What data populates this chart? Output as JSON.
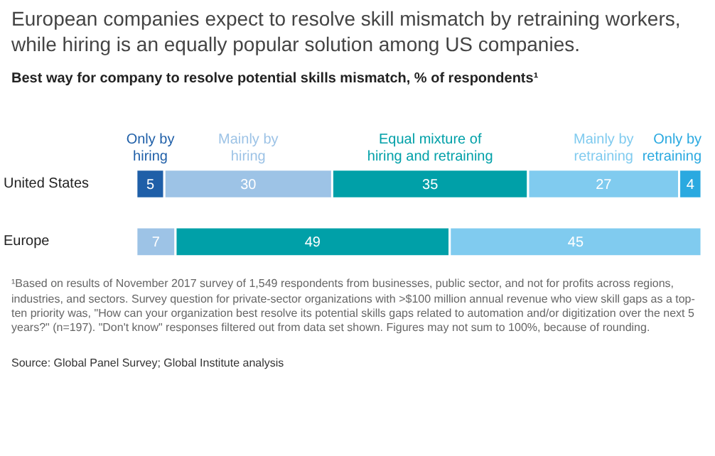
{
  "chart_data": {
    "type": "bar",
    "orientation": "horizontal",
    "stacked": true,
    "title": "European companies expect to resolve skill mismatch by retraining workers, while hiring is an equally popular solution among US companies.",
    "subtitle": "Best way for company to resolve potential skills mismatch, % of respondents¹",
    "categories": [
      "United States",
      "Europe"
    ],
    "series": [
      {
        "name": "Only by hiring",
        "color": "#1f5fa8",
        "values": [
          5,
          null
        ]
      },
      {
        "name": "Mainly by hiring",
        "color": "#9dc3e6",
        "values": [
          30,
          7
        ]
      },
      {
        "name": "Equal mixture of hiring and retraining",
        "color": "#00a0a8",
        "values": [
          35,
          49
        ]
      },
      {
        "name": "Mainly by retraining",
        "color": "#80cbef",
        "values": [
          27,
          45
        ]
      },
      {
        "name": "Only by retraining",
        "color": "#2aa9e0",
        "values": [
          4,
          null
        ]
      }
    ],
    "data_labels": true,
    "legend": "top",
    "annotations": [
      "¹Based on results of November 2017 survey of 1,549 respondents from businesses, public sector, and not for profits across regions, industries, and sectors. Survey question for private-sector organizations with >$100 million annual revenue who view skill gaps as a top-ten priority was, \"How can your organization best resolve its potential skills gaps related to automation and/or digitization over the next 5 years?\" (n=197). \"Don't know\" responses filtered out from data set shown. Figures may not sum to 100%, because of rounding.",
      "Source: Global Panel Survey; Global Institute analysis"
    ]
  }
}
